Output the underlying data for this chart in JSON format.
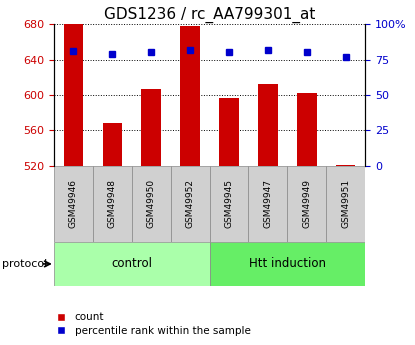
{
  "title": "GDS1236 / rc_AA799301_at",
  "samples": [
    "GSM49946",
    "GSM49948",
    "GSM49950",
    "GSM49952",
    "GSM49945",
    "GSM49947",
    "GSM49949",
    "GSM49951"
  ],
  "counts": [
    680,
    568,
    607,
    678,
    597,
    612,
    602,
    521
  ],
  "percentiles": [
    81,
    79,
    80,
    82,
    80,
    82,
    80,
    77
  ],
  "ylim_left": [
    520,
    680
  ],
  "ylim_right": [
    0,
    100
  ],
  "yticks_left": [
    520,
    560,
    600,
    640,
    680
  ],
  "yticks_right": [
    0,
    25,
    50,
    75,
    100
  ],
  "yticklabels_right": [
    "0",
    "25",
    "50",
    "75",
    "100%"
  ],
  "bar_color": "#cc0000",
  "dot_color": "#0000cc",
  "n_control": 4,
  "n_htt": 4,
  "control_label": "control",
  "htt_label": "Htt induction",
  "protocol_label": "protocol",
  "legend_count": "count",
  "legend_percentile": "percentile rank within the sample",
  "sample_box_color": "#d0d0d0",
  "control_color": "#aaffaa",
  "htt_color": "#66ee66",
  "title_fontsize": 11,
  "axis_color_left": "#cc0000",
  "axis_color_right": "#0000cc"
}
